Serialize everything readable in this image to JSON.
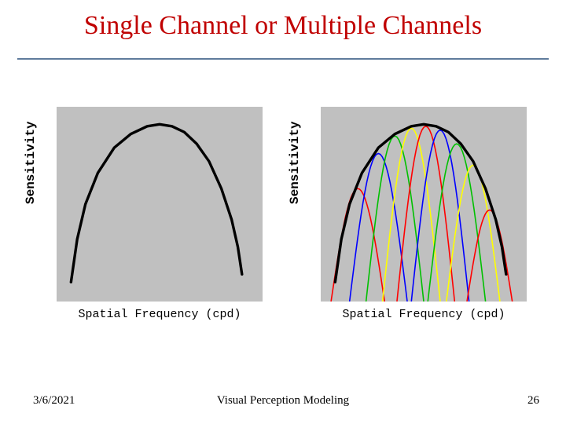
{
  "slide": {
    "title": "Single Channel or Multiple Channels",
    "title_color": "#c00000",
    "rule_color": "#5f7b9c",
    "background": "#ffffff",
    "title_fontsize": 34
  },
  "footer": {
    "date": "3/6/2021",
    "center": "Visual Perception Modeling",
    "page": "26",
    "color": "#000000",
    "fontsize": 15
  },
  "left_chart": {
    "type": "line",
    "xlabel": "Spatial Frequency (cpd)",
    "ylabel": "Sensitivity",
    "label_color": "#000000",
    "label_font": "Courier New",
    "plot_bg": "#c0c0c0",
    "panel_bg": "#ffffff",
    "xlim": [
      0,
      100
    ],
    "ylim": [
      0,
      100
    ],
    "envelope": {
      "color": "#000000",
      "width": 3.4,
      "points": [
        [
          7,
          10
        ],
        [
          10,
          32
        ],
        [
          14,
          50
        ],
        [
          20,
          66
        ],
        [
          28,
          79
        ],
        [
          36,
          86
        ],
        [
          44,
          90
        ],
        [
          50,
          91
        ],
        [
          56,
          90
        ],
        [
          62,
          87
        ],
        [
          68,
          81
        ],
        [
          74,
          72
        ],
        [
          80,
          58
        ],
        [
          85,
          42
        ],
        [
          88,
          28
        ],
        [
          90,
          14
        ]
      ]
    },
    "curves": []
  },
  "right_chart": {
    "type": "line",
    "xlabel": "Spatial Frequency (cpd)",
    "ylabel": "Sensitivity",
    "label_color": "#000000",
    "label_font": "Courier New",
    "plot_bg": "#c0c0c0",
    "panel_bg": "#ffffff",
    "xlim": [
      0,
      100
    ],
    "ylim": [
      0,
      100
    ],
    "envelope": {
      "color": "#000000",
      "width": 3.4,
      "points": [
        [
          7,
          10
        ],
        [
          10,
          32
        ],
        [
          14,
          50
        ],
        [
          20,
          66
        ],
        [
          28,
          79
        ],
        [
          36,
          86
        ],
        [
          44,
          90
        ],
        [
          50,
          91
        ],
        [
          56,
          90
        ],
        [
          62,
          87
        ],
        [
          68,
          81
        ],
        [
          74,
          72
        ],
        [
          80,
          58
        ],
        [
          85,
          42
        ],
        [
          88,
          28
        ],
        [
          90,
          14
        ]
      ]
    },
    "curves": [
      {
        "color": "#ff0000",
        "width": 1.6,
        "center": 18,
        "half": 13,
        "peak": 58
      },
      {
        "color": "#0000ff",
        "width": 1.6,
        "center": 28,
        "half": 14,
        "peak": 76
      },
      {
        "color": "#00c000",
        "width": 1.6,
        "center": 36,
        "half": 14,
        "peak": 85
      },
      {
        "color": "#ffff00",
        "width": 1.6,
        "center": 44,
        "half": 14,
        "peak": 89
      },
      {
        "color": "#ff0000",
        "width": 1.6,
        "center": 51,
        "half": 14,
        "peak": 90
      },
      {
        "color": "#0000ff",
        "width": 1.6,
        "center": 58,
        "half": 14,
        "peak": 88
      },
      {
        "color": "#00c000",
        "width": 1.6,
        "center": 66,
        "half": 14,
        "peak": 81
      },
      {
        "color": "#ffff00",
        "width": 1.6,
        "center": 74,
        "half": 13,
        "peak": 70
      },
      {
        "color": "#ff0000",
        "width": 1.6,
        "center": 82,
        "half": 11,
        "peak": 47
      }
    ]
  }
}
